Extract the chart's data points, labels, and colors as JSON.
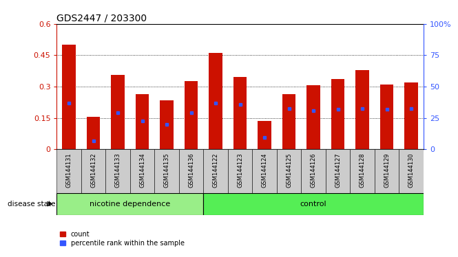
{
  "title": "GDS2447 / 203300",
  "samples": [
    "GSM144131",
    "GSM144132",
    "GSM144133",
    "GSM144134",
    "GSM144135",
    "GSM144136",
    "GSM144122",
    "GSM144123",
    "GSM144124",
    "GSM144125",
    "GSM144126",
    "GSM144127",
    "GSM144128",
    "GSM144129",
    "GSM144130"
  ],
  "counts": [
    0.5,
    0.155,
    0.355,
    0.265,
    0.235,
    0.325,
    0.46,
    0.345,
    0.135,
    0.265,
    0.305,
    0.335,
    0.38,
    0.31,
    0.32
  ],
  "percentiles": [
    0.22,
    0.04,
    0.175,
    0.135,
    0.12,
    0.175,
    0.22,
    0.215,
    0.055,
    0.195,
    0.185,
    0.19,
    0.195,
    0.19,
    0.195
  ],
  "bar_color": "#CC1100",
  "marker_color": "#3355FF",
  "ylim_left": [
    0,
    0.6
  ],
  "ylim_right": [
    0,
    100
  ],
  "yticks_left": [
    0,
    0.15,
    0.3,
    0.45,
    0.6
  ],
  "ytick_labels_left": [
    "0",
    "0.15",
    "0.3",
    "0.45",
    "0.6"
  ],
  "yticks_right": [
    0,
    25,
    50,
    75,
    100
  ],
  "ytick_labels_right": [
    "0",
    "25",
    "50",
    "75",
    "100%"
  ],
  "legend_count_label": "count",
  "legend_percentile_label": "percentile rank within the sample",
  "disease_state_label": "disease state",
  "bg_color": "#FFFFFF",
  "tick_area_color": "#CCCCCC",
  "nic_color": "#99EE88",
  "ctrl_color": "#55EE55",
  "nic_group": 6,
  "ctrl_group": 9,
  "title_fontsize": 10,
  "axis_fontsize": 8,
  "label_fontsize": 6,
  "group_fontsize": 8,
  "grid_ticks": [
    0.15,
    0.3,
    0.45
  ]
}
